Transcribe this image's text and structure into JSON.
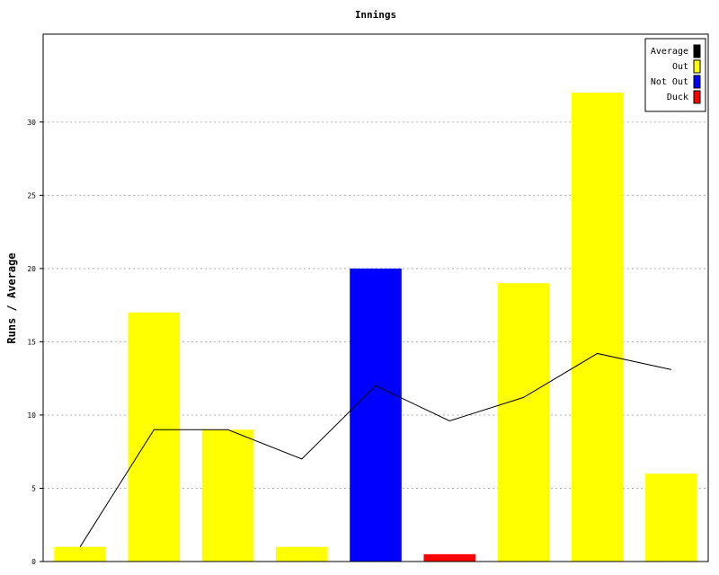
{
  "chart_data": {
    "type": "bar",
    "title": "Innings",
    "xlabel": "",
    "ylabel": "Runs / Average",
    "ylim": [
      0,
      36
    ],
    "yticks": [
      0,
      5,
      10,
      15,
      20,
      25,
      30
    ],
    "grid": true,
    "legend_position": "top-right",
    "legend": [
      {
        "name": "Average",
        "color": "#000000"
      },
      {
        "name": "Out",
        "color": "#ffff00"
      },
      {
        "name": "Not Out",
        "color": "#0000ff"
      },
      {
        "name": "Duck",
        "color": "#ff0000"
      }
    ],
    "bars": [
      {
        "value": 1,
        "status": "Out"
      },
      {
        "value": 17,
        "status": "Out"
      },
      {
        "value": 9,
        "status": "Out"
      },
      {
        "value": 1,
        "status": "Out"
      },
      {
        "value": 20,
        "status": "Not Out"
      },
      {
        "value": 0.5,
        "status": "Duck"
      },
      {
        "value": 19,
        "status": "Out"
      },
      {
        "value": 32,
        "status": "Out"
      },
      {
        "value": 6,
        "status": "Out"
      }
    ],
    "average": [
      1,
      9,
      9,
      7,
      12,
      9.6,
      11.2,
      14.2,
      13.1
    ]
  }
}
